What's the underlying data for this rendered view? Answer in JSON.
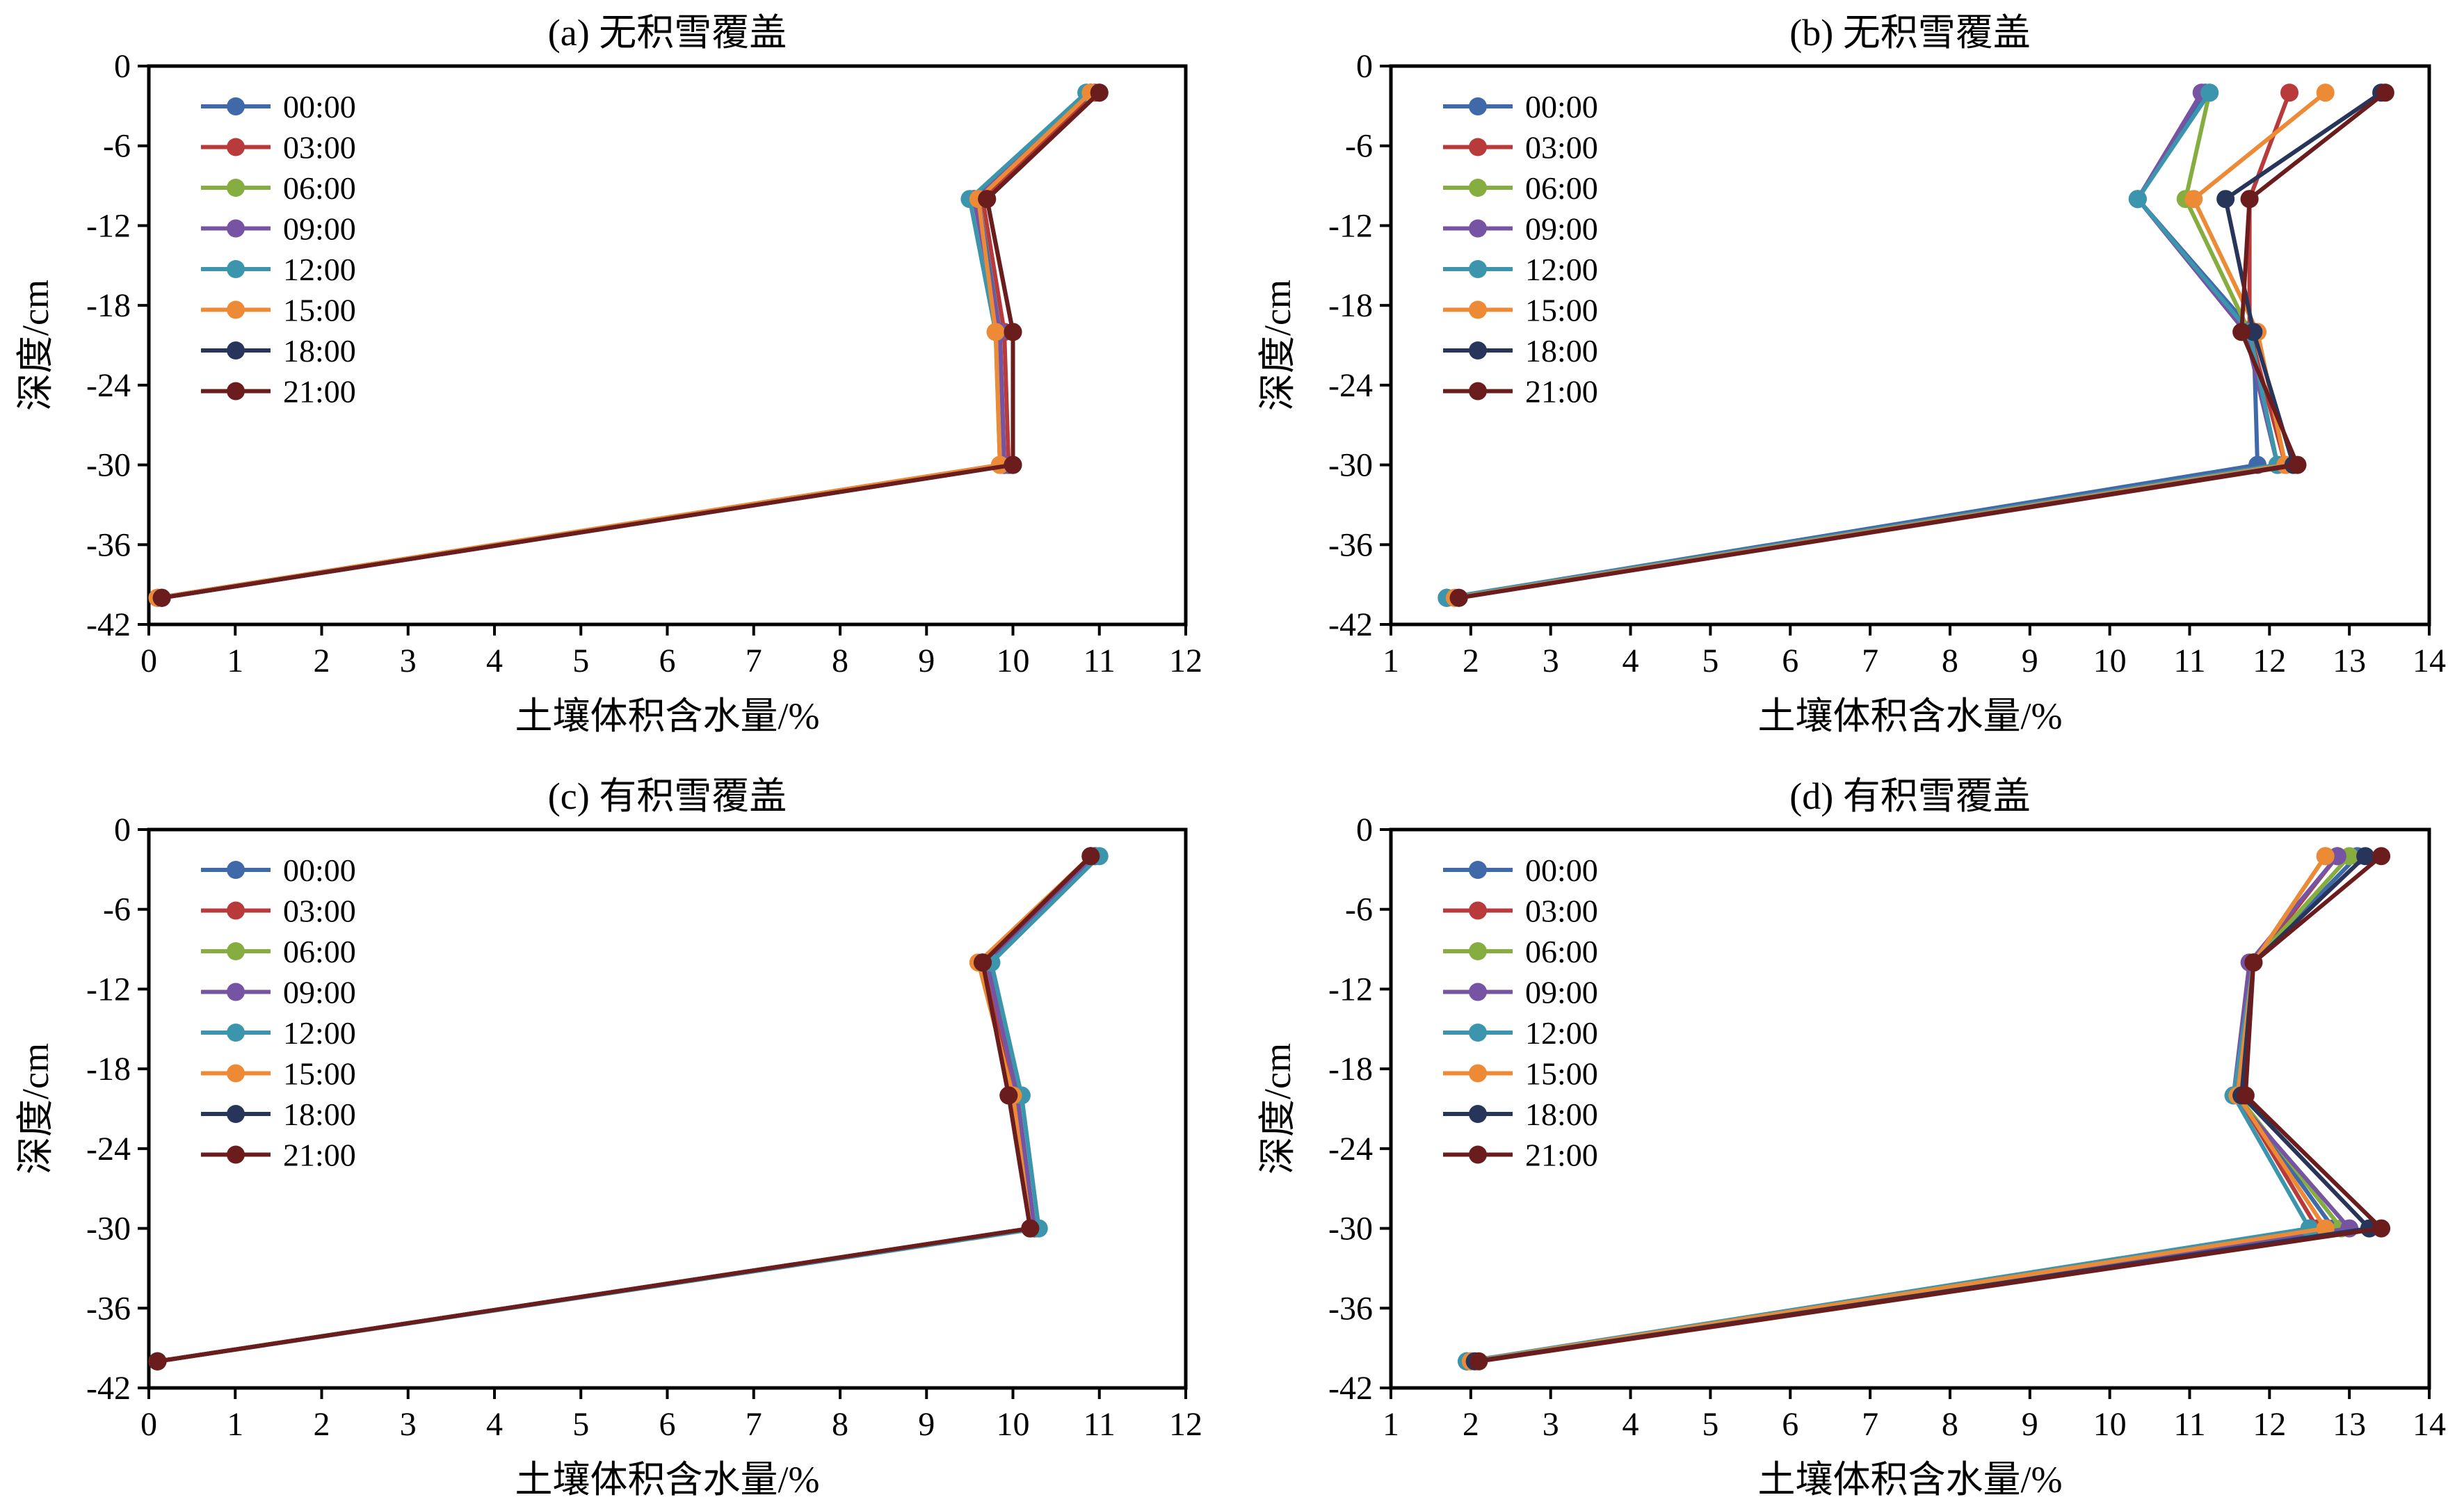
{
  "colors": {
    "00:00": "#3f69a8",
    "03:00": "#b83a3a",
    "06:00": "#86ad3f",
    "09:00": "#7753a3",
    "12:00": "#3b96ad",
    "15:00": "#ed8a35",
    "18:00": "#28355a",
    "21:00": "#6b1d1d"
  },
  "chart_data": [
    {
      "type": "line",
      "title": "(a) 无积雪覆盖",
      "xlabel": "土壤体积含水量/%",
      "ylabel": "深度/cm",
      "xlim": [
        0,
        12
      ],
      "ylim": [
        -42,
        0
      ],
      "xticks": [
        "0",
        "1",
        "2",
        "3",
        "4",
        "5",
        "6",
        "7",
        "8",
        "9",
        "10",
        "11",
        "12"
      ],
      "yticks": [
        "0",
        "-6",
        "-12",
        "-18",
        "-24",
        "-30",
        "-36",
        "-42"
      ],
      "legend_position": "top-left",
      "series": [
        {
          "name": "00:00",
          "x": [
            10.9,
            9.6,
            9.85,
            9.9,
            0.15
          ],
          "y": [
            -2,
            -10,
            -20,
            -30,
            -40
          ]
        },
        {
          "name": "03:00",
          "x": [
            10.95,
            9.65,
            9.9,
            9.95,
            0.15
          ],
          "y": [
            -2,
            -10,
            -20,
            -30,
            -40
          ]
        },
        {
          "name": "06:00",
          "x": [
            10.9,
            9.55,
            9.85,
            9.9,
            0.1
          ],
          "y": [
            -2,
            -10,
            -20,
            -30,
            -40
          ]
        },
        {
          "name": "09:00",
          "x": [
            10.9,
            9.55,
            9.85,
            9.9,
            0.1
          ],
          "y": [
            -2,
            -10,
            -20,
            -30,
            -40
          ]
        },
        {
          "name": "12:00",
          "x": [
            10.85,
            9.5,
            9.8,
            9.85,
            0.1
          ],
          "y": [
            -2,
            -10,
            -20,
            -30,
            -40
          ]
        },
        {
          "name": "15:00",
          "x": [
            10.9,
            9.6,
            9.8,
            9.85,
            0.1
          ],
          "y": [
            -2,
            -10,
            -20,
            -30,
            -40
          ]
        },
        {
          "name": "18:00",
          "x": [
            11.0,
            9.7,
            10.0,
            10.0,
            0.15
          ],
          "y": [
            -2,
            -10,
            -20,
            -30,
            -40
          ]
        },
        {
          "name": "21:00",
          "x": [
            11.0,
            9.7,
            10.0,
            10.0,
            0.15
          ],
          "y": [
            -2,
            -10,
            -20,
            -30,
            -40
          ]
        }
      ]
    },
    {
      "type": "line",
      "title": "(b) 无积雪覆盖",
      "xlabel": "土壤体积含水量/%",
      "ylabel": "深度/cm",
      "xlim": [
        1,
        14
      ],
      "ylim": [
        -42,
        0
      ],
      "xticks": [
        "1",
        "2",
        "3",
        "4",
        "5",
        "6",
        "7",
        "8",
        "9",
        "10",
        "11",
        "12",
        "13",
        "14"
      ],
      "yticks": [
        "0",
        "-6",
        "-12",
        "-18",
        "-24",
        "-30",
        "-36",
        "-42"
      ],
      "legend_position": "top-left",
      "series": [
        {
          "name": "00:00",
          "x": [
            11.2,
            10.35,
            11.8,
            11.85,
            1.7
          ],
          "y": [
            -2,
            -10,
            -20,
            -30,
            -40
          ]
        },
        {
          "name": "03:00",
          "x": [
            12.25,
            11.75,
            11.75,
            12.2,
            1.8
          ],
          "y": [
            -2,
            -10,
            -20,
            -30,
            -40
          ]
        },
        {
          "name": "06:00",
          "x": [
            11.25,
            10.95,
            11.75,
            12.1,
            1.7
          ],
          "y": [
            -2,
            -10,
            -20,
            -30,
            -40
          ]
        },
        {
          "name": "09:00",
          "x": [
            11.15,
            10.35,
            11.7,
            12.1,
            1.7
          ],
          "y": [
            -2,
            -10,
            -20,
            -30,
            -40
          ]
        },
        {
          "name": "12:00",
          "x": [
            11.25,
            10.35,
            11.75,
            12.1,
            1.7
          ],
          "y": [
            -2,
            -10,
            -20,
            -30,
            -40
          ]
        },
        {
          "name": "15:00",
          "x": [
            12.7,
            11.05,
            11.85,
            12.2,
            1.8
          ],
          "y": [
            -2,
            -10,
            -20,
            -30,
            -40
          ]
        },
        {
          "name": "18:00",
          "x": [
            13.4,
            11.45,
            11.8,
            12.3,
            1.85
          ],
          "y": [
            -2,
            -10,
            -20,
            -30,
            -40
          ]
        },
        {
          "name": "21:00",
          "x": [
            13.45,
            11.75,
            11.65,
            12.35,
            1.85
          ],
          "y": [
            -2,
            -10,
            -20,
            -30,
            -40
          ]
        }
      ]
    },
    {
      "type": "line",
      "title": "(c) 有积雪覆盖",
      "xlabel": "土壤体积含水量/%",
      "ylabel": "深度/cm",
      "xlim": [
        0,
        12
      ],
      "ylim": [
        -42,
        0
      ],
      "xticks": [
        "0",
        "1",
        "2",
        "3",
        "4",
        "5",
        "6",
        "7",
        "8",
        "9",
        "10",
        "11",
        "12"
      ],
      "yticks": [
        "0",
        "-6",
        "-12",
        "-18",
        "-24",
        "-30",
        "-36",
        "-42"
      ],
      "legend_position": "top-left",
      "series": [
        {
          "name": "00:00",
          "x": [
            10.95,
            9.7,
            10.05,
            10.25,
            0.1
          ],
          "y": [
            -2,
            -10,
            -20,
            -30,
            -40
          ]
        },
        {
          "name": "03:00",
          "x": [
            10.9,
            9.65,
            10.0,
            10.2,
            0.1
          ],
          "y": [
            -2,
            -10,
            -20,
            -30,
            -40
          ]
        },
        {
          "name": "06:00",
          "x": [
            10.95,
            9.75,
            10.05,
            10.25,
            0.1
          ],
          "y": [
            -2,
            -10,
            -20,
            -30,
            -40
          ]
        },
        {
          "name": "09:00",
          "x": [
            10.95,
            9.7,
            10.05,
            10.25,
            0.1
          ],
          "y": [
            -2,
            -10,
            -20,
            -30,
            -40
          ]
        },
        {
          "name": "12:00",
          "x": [
            11.0,
            9.75,
            10.1,
            10.3,
            0.1
          ],
          "y": [
            -2,
            -10,
            -20,
            -30,
            -40
          ]
        },
        {
          "name": "15:00",
          "x": [
            10.9,
            9.6,
            10.0,
            10.2,
            0.1
          ],
          "y": [
            -2,
            -10,
            -20,
            -30,
            -40
          ]
        },
        {
          "name": "18:00",
          "x": [
            10.9,
            9.65,
            9.95,
            10.2,
            0.1
          ],
          "y": [
            -2,
            -10,
            -20,
            -30,
            -40
          ]
        },
        {
          "name": "21:00",
          "x": [
            10.9,
            9.65,
            9.95,
            10.2,
            0.1
          ],
          "y": [
            -2,
            -10,
            -20,
            -30,
            -40
          ]
        }
      ]
    },
    {
      "type": "line",
      "title": "(d) 有积雪覆盖",
      "xlabel": "土壤体积含水量/%",
      "ylabel": "深度/cm",
      "xlim": [
        1,
        14
      ],
      "ylim": [
        -42,
        0
      ],
      "xticks": [
        "1",
        "2",
        "3",
        "4",
        "5",
        "6",
        "7",
        "8",
        "9",
        "10",
        "11",
        "12",
        "13",
        "14"
      ],
      "yticks": [
        "0",
        "-6",
        "-12",
        "-18",
        "-24",
        "-30",
        "-36",
        "-42"
      ],
      "legend_position": "top-left",
      "series": [
        {
          "name": "00:00",
          "x": [
            13.1,
            11.8,
            11.6,
            12.8,
            1.95
          ],
          "y": [
            -2,
            -10,
            -20,
            -30,
            -40
          ]
        },
        {
          "name": "03:00",
          "x": [
            12.85,
            11.8,
            11.6,
            12.6,
            2.0
          ],
          "y": [
            -2,
            -10,
            -20,
            -30,
            -40
          ]
        },
        {
          "name": "06:00",
          "x": [
            13.0,
            11.8,
            11.6,
            12.9,
            1.95
          ],
          "y": [
            -2,
            -10,
            -20,
            -30,
            -40
          ]
        },
        {
          "name": "09:00",
          "x": [
            12.85,
            11.75,
            11.55,
            13.0,
            1.95
          ],
          "y": [
            -2,
            -10,
            -20,
            -30,
            -40
          ]
        },
        {
          "name": "12:00",
          "x": [
            12.7,
            11.8,
            11.55,
            12.5,
            1.95
          ],
          "y": [
            -2,
            -10,
            -20,
            -30,
            -40
          ]
        },
        {
          "name": "15:00",
          "x": [
            12.7,
            11.8,
            11.6,
            12.7,
            2.0
          ],
          "y": [
            -2,
            -10,
            -20,
            -30,
            -40
          ]
        },
        {
          "name": "18:00",
          "x": [
            13.2,
            11.8,
            11.65,
            13.25,
            2.05
          ],
          "y": [
            -2,
            -10,
            -20,
            -30,
            -40
          ]
        },
        {
          "name": "21:00",
          "x": [
            13.4,
            11.8,
            11.7,
            13.4,
            2.1
          ],
          "y": [
            -2,
            -10,
            -20,
            -30,
            -40
          ]
        }
      ]
    }
  ]
}
